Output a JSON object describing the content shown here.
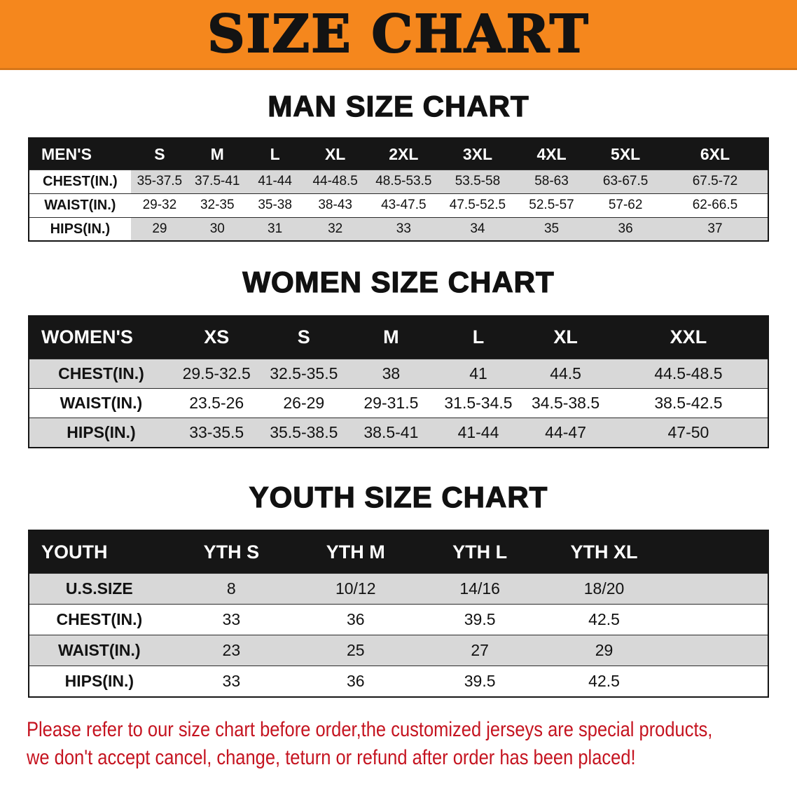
{
  "colors": {
    "banner_orange": "#f5871d",
    "header_black": "#161616",
    "stripe_gray": "#d8d8d8",
    "disclaimer_red": "#c51420",
    "text_black": "#121212"
  },
  "banner": {
    "title": "SIZE CHART"
  },
  "sections": [
    {
      "heading": "MAN SIZE CHART",
      "table": {
        "header": [
          "MEN'S",
          "S",
          "M",
          "L",
          "XL",
          "2XL",
          "3XL",
          "4XL",
          "5XL",
          "6XL"
        ],
        "rows": [
          [
            "CHEST(IN.)",
            "35-37.5",
            "37.5-41",
            "41-44",
            "44-48.5",
            "48.5-53.5",
            "53.5-58",
            "58-63",
            "63-67.5",
            "67.5-72"
          ],
          [
            "WAIST(IN.)",
            "29-32",
            "32-35",
            "35-38",
            "38-43",
            "43-47.5",
            "47.5-52.5",
            "52.5-57",
            "57-62",
            "62-66.5"
          ],
          [
            "HIPS(IN.)",
            "29",
            "30",
            "31",
            "32",
            "33",
            "34",
            "35",
            "36",
            "37"
          ]
        ]
      }
    },
    {
      "heading": "WOMEN SIZE CHART",
      "table": {
        "header": [
          "WOMEN'S",
          "XS",
          "S",
          "M",
          "L",
          "XL",
          "XXL"
        ],
        "rows": [
          [
            "CHEST(IN.)",
            "29.5-32.5",
            "32.5-35.5",
            "38",
            "41",
            "44.5",
            "44.5-48.5"
          ],
          [
            "WAIST(IN.)",
            "23.5-26",
            "26-29",
            "29-31.5",
            "31.5-34.5",
            "34.5-38.5",
            "38.5-42.5"
          ],
          [
            "HIPS(IN.)",
            "33-35.5",
            "35.5-38.5",
            "38.5-41",
            "41-44",
            "44-47",
            "47-50"
          ]
        ]
      }
    },
    {
      "heading": "YOUTH SIZE CHART",
      "table": {
        "header": [
          "YOUTH",
          "YTH S",
          "YTH M",
          "YTH L",
          "YTH XL"
        ],
        "rows": [
          [
            "U.S.SIZE",
            "8",
            "10/12",
            "14/16",
            "18/20"
          ],
          [
            "CHEST(IN.)",
            "33",
            "36",
            "39.5",
            "42.5"
          ],
          [
            "WAIST(IN.)",
            "23",
            "25",
            "27",
            "29"
          ],
          [
            "HIPS(IN.)",
            "33",
            "36",
            "39.5",
            "42.5"
          ]
        ]
      }
    }
  ],
  "disclaimer": {
    "line1": "Please refer to our size chart before order,the customized jerseys are special products,",
    "line2": "we don't accept cancel, change, teturn or refund after order has been placed!"
  }
}
